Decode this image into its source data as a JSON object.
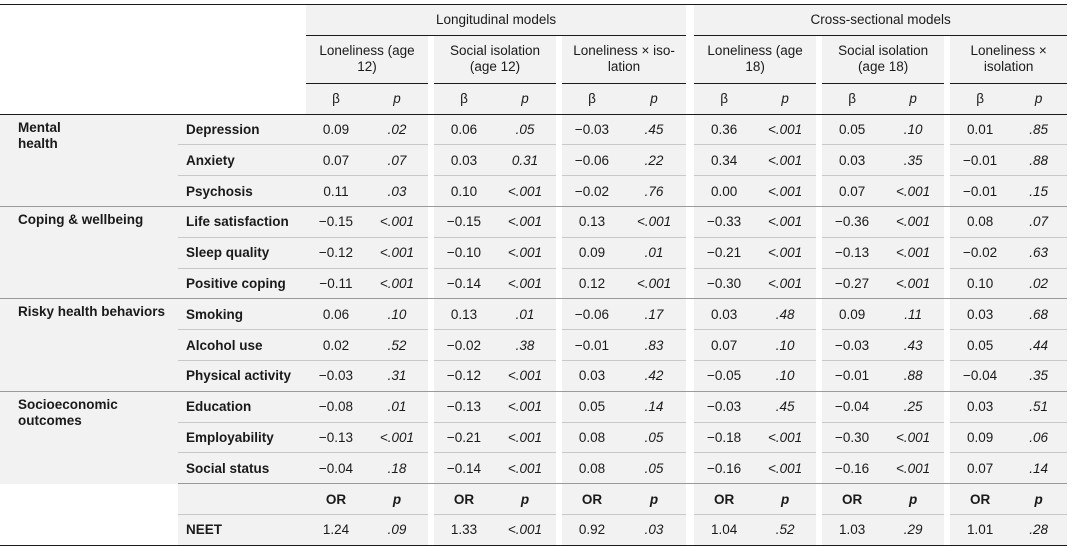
{
  "header": {
    "group_longitudinal": "Longitudinal models",
    "group_cross": "Cross-sectional models",
    "models": [
      "Loneliness (age 12)",
      "Social isolation (age 12)",
      "Loneliness × isolation",
      "Loneliness (age 18)",
      "Social isolation (age 18)",
      "Loneliness × isolation"
    ],
    "models_line1": [
      "Loneliness (age",
      "Social isolation",
      "Loneliness × iso-",
      "Loneliness (age",
      "Social isolation",
      "Loneliness ×"
    ],
    "models_line2": [
      "12)",
      "(age 12)",
      "lation",
      "18)",
      "(age 18)",
      "isolation"
    ],
    "beta": "β",
    "p": "p",
    "or": "OR"
  },
  "domains": [
    {
      "name": "Mental health",
      "name_lines": [
        "Mental",
        "health"
      ],
      "rows": [
        {
          "outcome": "Depression",
          "cells": [
            "0.09",
            ".02",
            "0.06",
            ".05",
            "−0.03",
            ".45",
            "0.36",
            "<.001",
            "0.05",
            ".10",
            "0.01",
            ".85"
          ]
        },
        {
          "outcome": "Anxiety",
          "cells": [
            "0.07",
            ".07",
            "0.03",
            "0.31",
            "−0.06",
            ".22",
            "0.34",
            "<.001",
            "0.03",
            ".35",
            "−0.01",
            ".88"
          ]
        },
        {
          "outcome": "Psychosis",
          "cells": [
            "0.11",
            ".03",
            "0.10",
            "<.001",
            "−0.02",
            ".76",
            "0.00",
            "<.001",
            "0.07",
            "<.001",
            "−0.01",
            ".15"
          ]
        }
      ]
    },
    {
      "name": "Coping & wellbeing",
      "name_lines": [
        "Coping & wellbeing"
      ],
      "rows": [
        {
          "outcome": "Life satisfaction",
          "cells": [
            "−0.15",
            "<.001",
            "−0.15",
            "<.001",
            "0.13",
            "<.001",
            "−0.33",
            "<.001",
            "−0.36",
            "<.001",
            "0.08",
            ".07"
          ]
        },
        {
          "outcome": "Sleep quality",
          "cells": [
            "−0.12",
            "<.001",
            "−0.10",
            "<.001",
            "0.09",
            ".01",
            "−0.21",
            "<.001",
            "−0.13",
            "<.001",
            "−0.02",
            ".63"
          ]
        },
        {
          "outcome": "Positive coping",
          "cells": [
            "−0.11",
            "<.001",
            "−0.14",
            "<.001",
            "0.12",
            "<.001",
            "−0.30",
            "<.001",
            "−0.27",
            "<.001",
            "0.10",
            ".02"
          ]
        }
      ]
    },
    {
      "name": "Risky health behaviors",
      "name_lines": [
        "Risky health behaviors"
      ],
      "rows": [
        {
          "outcome": "Smoking",
          "cells": [
            "0.06",
            ".10",
            "0.13",
            ".01",
            "−0.06",
            ".17",
            "0.03",
            ".48",
            "0.09",
            ".11",
            "0.03",
            ".68"
          ]
        },
        {
          "outcome": "Alcohol use",
          "cells": [
            "0.02",
            ".52",
            "−0.02",
            ".38",
            "−0.01",
            ".83",
            "0.07",
            ".10",
            "−0.03",
            ".43",
            "0.05",
            ".44"
          ]
        },
        {
          "outcome": "Physical activity",
          "cells": [
            "−0.03",
            ".31",
            "−0.12",
            "<.001",
            "0.03",
            ".42",
            "−0.05",
            ".10",
            "−0.01",
            ".88",
            "−0.04",
            ".35"
          ]
        }
      ]
    },
    {
      "name": "Socioeconomic outcomes",
      "name_lines": [
        "Socioeconomic",
        "outcomes"
      ],
      "rows": [
        {
          "outcome": "Education",
          "cells": [
            "−0.08",
            ".01",
            "−0.13",
            "<.001",
            "0.05",
            ".14",
            "−0.03",
            ".45",
            "−0.04",
            ".25",
            "0.03",
            ".51"
          ]
        },
        {
          "outcome": "Employability",
          "cells": [
            "−0.13",
            "<.001",
            "−0.21",
            "<.001",
            "0.08",
            ".05",
            "−0.18",
            "<.001",
            "−0.30",
            "<.001",
            "0.09",
            ".06"
          ]
        },
        {
          "outcome": "Social status",
          "cells": [
            "−0.04",
            ".18",
            "−0.14",
            "<.001",
            "0.08",
            ".05",
            "−0.16",
            "<.001",
            "−0.16",
            "<.001",
            "0.07",
            ".14"
          ]
        }
      ]
    }
  ],
  "neet": {
    "outcome": "NEET",
    "cells": [
      "1.24",
      ".09",
      "1.33",
      "<.001",
      "0.92",
      ".03",
      "1.04",
      ".52",
      "1.03",
      ".29",
      "1.01",
      ".28"
    ]
  }
}
